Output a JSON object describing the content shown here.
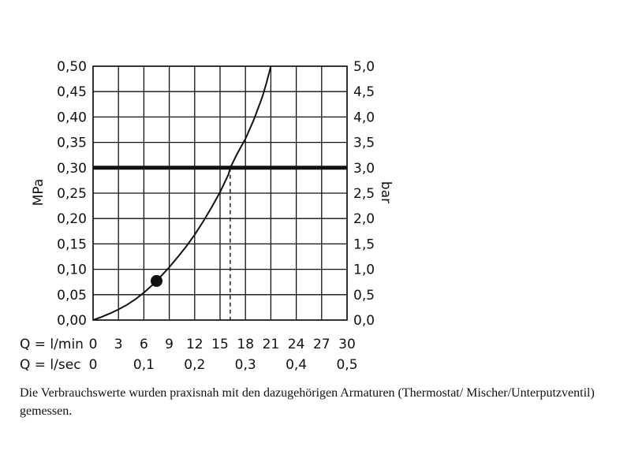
{
  "chart_data": {
    "type": "line",
    "y_left": {
      "label": "MPa",
      "range": [
        0,
        0.5
      ],
      "tick_labels": [
        "0,00",
        "0,05",
        "0,10",
        "0,15",
        "0,20",
        "0,25",
        "0,30",
        "0,35",
        "0,40",
        "0,45",
        "0,50"
      ]
    },
    "y_right": {
      "label": "bar",
      "range": [
        0,
        5
      ],
      "tick_labels": [
        "0,0",
        "0,5",
        "1,0",
        "1,5",
        "2,0",
        "2,5",
        "3,0",
        "3,5",
        "4,0",
        "4,5",
        "5,0"
      ]
    },
    "x_lmin": {
      "label": "Q = l/min",
      "range": [
        0,
        30
      ],
      "tick_labels": [
        "0",
        "3",
        "6",
        "9",
        "12",
        "15",
        "18",
        "21",
        "24",
        "27",
        "30"
      ]
    },
    "x_lsec": {
      "label": "Q = l/sec",
      "range": [
        0,
        0.5
      ],
      "tick_labels": [
        "0",
        "0,1",
        "0,2",
        "0,3",
        "0,4",
        "0,5"
      ]
    },
    "grid": true,
    "reference_line_mpa": 0.3,
    "reference_flow_lmin": 16.2,
    "marker_point": {
      "x": 7.5,
      "y": 0.077
    },
    "series": [
      {
        "x": [
          0,
          1,
          2,
          3,
          4,
          5,
          6,
          7,
          7.5,
          8,
          9,
          10,
          11,
          12,
          13,
          14,
          15,
          16,
          16.2,
          17,
          18,
          19,
          20,
          20.5,
          21
        ],
        "y": [
          0,
          0.006,
          0.013,
          0.021,
          0.03,
          0.041,
          0.054,
          0.069,
          0.077,
          0.086,
          0.104,
          0.124,
          0.145,
          0.168,
          0.194,
          0.222,
          0.252,
          0.287,
          0.3,
          0.327,
          0.357,
          0.395,
          0.44,
          0.468,
          0.5
        ]
      }
    ]
  },
  "caption": "Die Verbrauchswerte wurden praxisnah mit den dazugehörigen Armaturen (Thermostat/ Mischer/Unterputzventil) gemessen."
}
